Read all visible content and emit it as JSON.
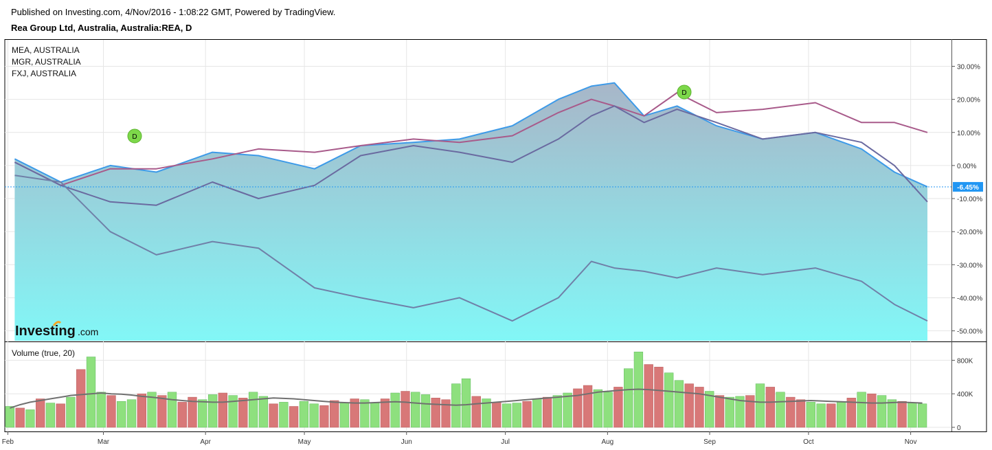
{
  "header": {
    "published": "Published on Investing.com, 4/Nov/2016 - 1:08:22 GMT, Powered by TradingView.",
    "title": "Rea Group Ltd, Australia, Australia:REA, D"
  },
  "legend": [
    "MEA, AUSTRALIA",
    "MGR, AUSTRALIA",
    "FXJ, AUSTRALIA"
  ],
  "volume_label": "Volume (true, 20)",
  "logo": {
    "main": "Investing",
    "suffix": ".com"
  },
  "current_value_label": "-6.45%",
  "dividend_marker_label": "D",
  "colors": {
    "rea_line": "#3d9ae8",
    "rea_fill_top": "#a8b6c8",
    "rea_fill_bottom": "#82f7f7",
    "mea": "#a85a8a",
    "mgr": "#6a6aa0",
    "fxj": "#7080a8",
    "vol_up": "#8ee07e",
    "vol_down": "#d87878",
    "vol_ma": "#707070",
    "marker": "#7dd84a",
    "current_label_bg": "#2196f3"
  },
  "chart_data": [
    {
      "type": "line",
      "title": "Rea Group Ltd, Australia, Australia:REA, D",
      "x": [
        "2016-02-01",
        "2016-02-15",
        "2016-03-01",
        "2016-03-15",
        "2016-04-01",
        "2016-04-15",
        "2016-05-02",
        "2016-05-16",
        "2016-06-01",
        "2016-06-15",
        "2016-07-01",
        "2016-07-15",
        "2016-07-25",
        "2016-08-01",
        "2016-08-10",
        "2016-08-20",
        "2016-09-01",
        "2016-09-15",
        "2016-10-01",
        "2016-10-15",
        "2016-10-25",
        "2016-11-04"
      ],
      "x_tick_labels": [
        "Feb",
        "Mar",
        "Apr",
        "May",
        "Jun",
        "Jul",
        "Aug",
        "Sep",
        "Oct",
        "Nov"
      ],
      "y_tick_labels": [
        "30.00%",
        "20.00%",
        "10.00%",
        "0.00%",
        "-10.00%",
        "-20.00%",
        "-30.00%",
        "-40.00%",
        "-50.00%"
      ],
      "ylim": [
        -53,
        38
      ],
      "grid": true,
      "legend_position": "top-left",
      "series": [
        {
          "name": "Rea Group Ltd, Australia, Australia:REA, D",
          "style": "area",
          "values": [
            2,
            -5,
            0,
            -2,
            4,
            3,
            -1,
            6,
            7,
            8,
            12,
            20,
            24,
            25,
            15,
            18,
            12,
            8,
            10,
            5,
            -2,
            -6.45
          ]
        },
        {
          "name": "MEA, AUSTRALIA",
          "style": "line",
          "values": [
            1,
            -6,
            -1,
            -1,
            2,
            5,
            4,
            6,
            8,
            7,
            9,
            16,
            20,
            18,
            15,
            22,
            16,
            17,
            19,
            13,
            13,
            10
          ]
        },
        {
          "name": "MGR, AUSTRALIA",
          "style": "line",
          "values": [
            1,
            -6,
            -11,
            -12,
            -5,
            -10,
            -6,
            3,
            6,
            4,
            1,
            8,
            15,
            18,
            13,
            17,
            13,
            8,
            10,
            7,
            0,
            -11
          ]
        },
        {
          "name": "FXJ, AUSTRALIA",
          "style": "line",
          "values": [
            -3,
            -5,
            -20,
            -27,
            -23,
            -25,
            -37,
            -40,
            -43,
            -40,
            -47,
            -40,
            -29,
            -31,
            -32,
            -34,
            -31,
            -33,
            -31,
            -35,
            -42,
            -47
          ]
        }
      ]
    },
    {
      "type": "bar",
      "title": "Volume (true, 20)",
      "y_tick_labels": [
        "800K",
        "400K",
        "0"
      ],
      "ylim": [
        0,
        1000000
      ],
      "values": [
        250000,
        230000,
        210000,
        340000,
        290000,
        280000,
        360000,
        690000,
        840000,
        420000,
        380000,
        310000,
        330000,
        400000,
        420000,
        380000,
        420000,
        300000,
        360000,
        330000,
        390000,
        410000,
        380000,
        350000,
        420000,
        370000,
        280000,
        300000,
        250000,
        310000,
        280000,
        260000,
        320000,
        290000,
        340000,
        330000,
        290000,
        340000,
        410000,
        430000,
        420000,
        390000,
        350000,
        330000,
        520000,
        580000,
        370000,
        340000,
        300000,
        280000,
        290000,
        310000,
        340000,
        360000,
        380000,
        410000,
        460000,
        500000,
        450000,
        420000,
        480000,
        700000,
        900000,
        750000,
        720000,
        650000,
        560000,
        520000,
        480000,
        430000,
        380000,
        360000,
        370000,
        380000,
        520000,
        480000,
        420000,
        360000,
        330000,
        300000,
        280000,
        280000,
        300000,
        350000,
        420000,
        400000,
        380000,
        330000,
        310000,
        290000,
        280000
      ],
      "up": [
        true,
        false,
        true,
        false,
        true,
        false,
        true,
        false,
        true,
        true,
        false,
        true,
        true,
        false,
        true,
        false,
        true,
        false,
        false,
        true,
        true,
        false,
        true,
        false,
        true,
        true,
        false,
        true,
        false,
        true,
        true,
        false,
        false,
        true,
        false,
        true,
        true,
        false,
        true,
        false,
        true,
        true,
        false,
        false,
        true,
        true,
        false,
        true,
        false,
        true,
        true,
        false,
        true,
        false,
        true,
        true,
        false,
        false,
        true,
        true,
        false,
        true,
        true,
        false,
        false,
        true,
        true,
        false,
        false,
        true,
        false,
        true,
        true,
        false,
        true,
        false,
        true,
        false,
        false,
        true,
        true,
        false,
        true,
        false,
        true,
        false,
        true,
        true,
        false,
        true,
        true
      ],
      "ma_values": [
        230000,
        270000,
        300000,
        320000,
        340000,
        360000,
        380000,
        390000,
        400000,
        410000,
        400000,
        395000,
        385000,
        370000,
        360000,
        345000,
        330000,
        320000,
        310000,
        305000,
        300000,
        300000,
        310000,
        320000,
        330000,
        340000,
        350000,
        345000,
        340000,
        330000,
        320000,
        310000,
        300000,
        295000,
        290000,
        290000,
        295000,
        300000,
        305000,
        300000,
        290000,
        280000,
        275000,
        270000,
        265000,
        270000,
        280000,
        290000,
        300000,
        310000,
        320000,
        330000,
        340000,
        350000,
        360000,
        370000,
        380000,
        400000,
        420000,
        430000,
        440000,
        450000,
        455000,
        450000,
        440000,
        430000,
        420000,
        410000,
        400000,
        380000,
        360000,
        340000,
        320000,
        310000,
        300000,
        300000,
        305000,
        310000,
        315000,
        320000,
        315000,
        310000,
        305000,
        300000,
        295000,
        290000,
        290000,
        295000,
        300000,
        295000,
        290000
      ]
    }
  ]
}
